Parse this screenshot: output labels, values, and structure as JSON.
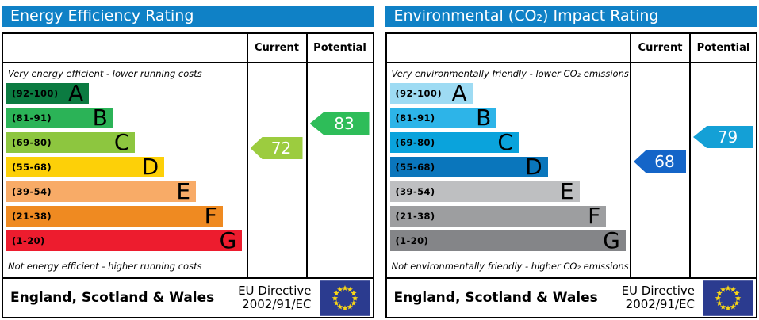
{
  "panels": [
    {
      "title": "Energy Efficiency Rating",
      "columns": {
        "current": "Current",
        "potential": "Potential"
      },
      "top_caption": "Very energy efficient - lower running costs",
      "bottom_caption": "Not energy efficient - higher running costs",
      "bands": [
        {
          "range": "(92-100)",
          "letter": "A",
          "color": "#0b7b41",
          "width_pct": 34
        },
        {
          "range": "(81-91)",
          "letter": "B",
          "color": "#2bb357",
          "width_pct": 44
        },
        {
          "range": "(69-80)",
          "letter": "C",
          "color": "#8dc63f",
          "width_pct": 53
        },
        {
          "range": "(55-68)",
          "letter": "D",
          "color": "#fdd008",
          "width_pct": 65
        },
        {
          "range": "(39-54)",
          "letter": "E",
          "color": "#f8ab67",
          "width_pct": 78
        },
        {
          "range": "(21-38)",
          "letter": "F",
          "color": "#ef8a21",
          "width_pct": 89
        },
        {
          "range": "(1-20)",
          "letter": "G",
          "color": "#ed1c2e",
          "width_pct": 97
        }
      ],
      "current": {
        "value": "72",
        "band_index": 2,
        "color": "#9ccc3f"
      },
      "potential": {
        "value": "83",
        "band_index": 1,
        "color": "#2ebd59"
      },
      "footer": {
        "region": "England, Scotland & Wales",
        "directive_line1": "EU Directive",
        "directive_line2": "2002/91/EC",
        "flag_icon": "eu-flag-icon"
      }
    },
    {
      "title": "Environmental (CO₂) Impact Rating",
      "columns": {
        "current": "Current",
        "potential": "Potential"
      },
      "top_caption": "Very environmentally friendly - lower CO₂ emissions",
      "bottom_caption": "Not environmentally friendly - higher CO₂ emissions",
      "bands": [
        {
          "range": "(92-100)",
          "letter": "A",
          "color": "#9edbf3",
          "width_pct": 34
        },
        {
          "range": "(81-91)",
          "letter": "B",
          "color": "#2db4e8",
          "width_pct": 44
        },
        {
          "range": "(69-80)",
          "letter": "C",
          "color": "#0aa3dc",
          "width_pct": 53
        },
        {
          "range": "(55-68)",
          "letter": "D",
          "color": "#0a76bc",
          "width_pct": 65
        },
        {
          "range": "(39-54)",
          "letter": "E",
          "color": "#bebfc1",
          "width_pct": 78
        },
        {
          "range": "(21-38)",
          "letter": "F",
          "color": "#9d9ea0",
          "width_pct": 89
        },
        {
          "range": "(1-20)",
          "letter": "G",
          "color": "#848588",
          "width_pct": 97
        }
      ],
      "current": {
        "value": "68",
        "band_index": 3,
        "color": "#1465c8"
      },
      "potential": {
        "value": "79",
        "band_index": 2,
        "color": "#14a0d6"
      },
      "footer": {
        "region": "England, Scotland & Wales",
        "directive_line1": "EU Directive",
        "directive_line2": "2002/91/EC",
        "flag_icon": "eu-flag-icon"
      }
    }
  ],
  "flag_colors": {
    "field": "#2b3b8f",
    "stars": "#f9d616"
  },
  "chart_data": [
    {
      "type": "bar",
      "title": "Energy Efficiency Rating",
      "categories": [
        "A (92-100)",
        "B (81-91)",
        "C (69-80)",
        "D (55-68)",
        "E (39-54)",
        "F (21-38)",
        "G (1-20)"
      ],
      "values": [
        34,
        44,
        53,
        65,
        78,
        89,
        97
      ],
      "value_note": "bar length as % of band column (decorative EPC scale)",
      "current_rating": 72,
      "current_band": "C",
      "potential_rating": 83,
      "potential_band": "B",
      "xlabel": "",
      "ylabel": "",
      "legend": [
        "Current",
        "Potential"
      ]
    },
    {
      "type": "bar",
      "title": "Environmental (CO₂) Impact Rating",
      "categories": [
        "A (92-100)",
        "B (81-91)",
        "C (69-80)",
        "D (55-68)",
        "E (39-54)",
        "F (21-38)",
        "G (1-20)"
      ],
      "values": [
        34,
        44,
        53,
        65,
        78,
        89,
        97
      ],
      "value_note": "bar length as % of band column (decorative EPC scale)",
      "current_rating": 68,
      "current_band": "D",
      "potential_rating": 79,
      "potential_band": "C",
      "xlabel": "",
      "ylabel": "",
      "legend": [
        "Current",
        "Potential"
      ]
    }
  ]
}
